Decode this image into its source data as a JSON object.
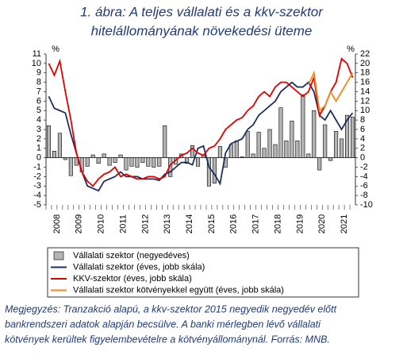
{
  "chart_data": {
    "type": "bar-line",
    "title": [
      "1. ábra: A teljes vállalati és a kkv-szektor",
      "hitelállományának növekedési üteme"
    ],
    "y_unit": "%",
    "y2_unit": "%",
    "categories": [
      "2008",
      null,
      null,
      null,
      "2009",
      null,
      null,
      null,
      "2010",
      null,
      null,
      null,
      "2011",
      null,
      null,
      null,
      "2012",
      null,
      null,
      null,
      "2013",
      null,
      null,
      null,
      "2014",
      null,
      null,
      null,
      "2015",
      null,
      null,
      null,
      "2016",
      null,
      null,
      null,
      "2017",
      null,
      null,
      null,
      "2018",
      null,
      null,
      null,
      "2019",
      null,
      null,
      null,
      "2020",
      null,
      null,
      null,
      "2021",
      null,
      null,
      null
    ],
    "ylim": [
      -5,
      11
    ],
    "yticks": [
      -5,
      -4,
      -3,
      -2,
      -1,
      0,
      1,
      2,
      3,
      4,
      5,
      6,
      7,
      8,
      9,
      10,
      11
    ],
    "y2lim": [
      -10,
      22
    ],
    "y2ticks": [
      -10,
      -8,
      -6,
      -4,
      -2,
      0,
      2,
      4,
      6,
      8,
      10,
      12,
      14,
      16,
      18,
      20,
      22
    ],
    "series": [
      {
        "name": "Vállalati szektor (negyedéves)",
        "kind": "bar",
        "color": "#b4b4b4",
        "values": [
          3.4,
          0.7,
          2.6,
          -0.2,
          -1.9,
          -0.8,
          -1.5,
          -0.9,
          0.3,
          -0.6,
          0.4,
          -0.8,
          -0.5,
          0.3,
          -1.3,
          -0.9,
          -1.0,
          -0.5,
          -0.9,
          -1.0,
          -0.9,
          3.4,
          -2.0,
          -0.7,
          0.4,
          -0.6,
          1.3,
          -0.9,
          0.3,
          -3.0,
          -2.7,
          1.2,
          -1.0,
          1.4,
          1.8,
          0.1,
          2.8,
          0.4,
          2.7,
          1.0,
          3.0,
          1.4,
          5.3,
          1.8,
          3.9,
          1.8,
          6.7,
          0.4,
          5.0,
          -1.3,
          3.5,
          -0.3,
          2.8,
          2.0,
          4.5,
          4.3
        ]
      },
      {
        "name": "Vállalati szektor (éves, jobb skála)",
        "kind": "line",
        "axis": "y2",
        "color": "#1f2f5e",
        "values": [
          13,
          10.5,
          10,
          9.5,
          5,
          1,
          -3,
          -6,
          -6.5,
          -7,
          -5,
          -4.5,
          -4,
          -3,
          -4,
          -4,
          -4,
          -4.5,
          -4.5,
          -4.5,
          -4.8,
          -3.5,
          -3,
          -2,
          -1,
          -1,
          -1.5,
          2,
          2.5,
          -2,
          -3.5,
          -5.5,
          1,
          3,
          3.5,
          4,
          6,
          7,
          9,
          10,
          11,
          12,
          14,
          15,
          16,
          15,
          15,
          16,
          14,
          9,
          8,
          10,
          8,
          6,
          8,
          9.5
        ]
      },
      {
        "name": "KKV-szektor (éves, jobb skála)",
        "kind": "line",
        "axis": "y2",
        "color": "#e00000",
        "values": [
          20,
          17.5,
          20.5,
          14,
          8,
          1,
          -3,
          -5,
          -6,
          -4.5,
          -3.5,
          -3,
          -2,
          -4,
          -3.5,
          -4,
          -4.5,
          -4.5,
          -4,
          -4,
          -4.5,
          -4,
          -1.5,
          -0.5,
          0.5,
          1,
          2,
          1,
          0.5,
          2,
          2.5,
          4,
          6,
          7,
          8,
          8.5,
          10,
          11,
          13,
          14,
          13,
          15,
          16,
          16,
          15,
          14,
          13,
          14,
          17,
          9,
          11,
          14,
          16,
          21,
          20,
          17
        ]
      },
      {
        "name": "Vállalati szektor kötvényekkel együtt (éves, jobb skála)",
        "kind": "line",
        "axis": "y2",
        "color": "#f08a1e",
        "values": [
          null,
          null,
          null,
          null,
          null,
          null,
          null,
          null,
          null,
          null,
          null,
          null,
          null,
          null,
          null,
          null,
          null,
          null,
          null,
          null,
          null,
          null,
          null,
          null,
          null,
          null,
          null,
          null,
          null,
          null,
          null,
          null,
          null,
          null,
          null,
          null,
          null,
          null,
          null,
          null,
          null,
          null,
          null,
          null,
          null,
          null,
          null,
          15.5,
          18,
          10,
          11,
          14,
          12,
          14,
          16,
          18
        ]
      }
    ],
    "note": [
      "Megjegyzés: Tranzakció alapú, a kkv-szektor 2015 negyedik negyedév előtt",
      "bankrendszeri adatok alapján becsülve. A banki mérlegben lévő vállalati",
      "kötvények kerültek figyelembevételre a kötvényállománynál. Forrás: MNB."
    ]
  }
}
